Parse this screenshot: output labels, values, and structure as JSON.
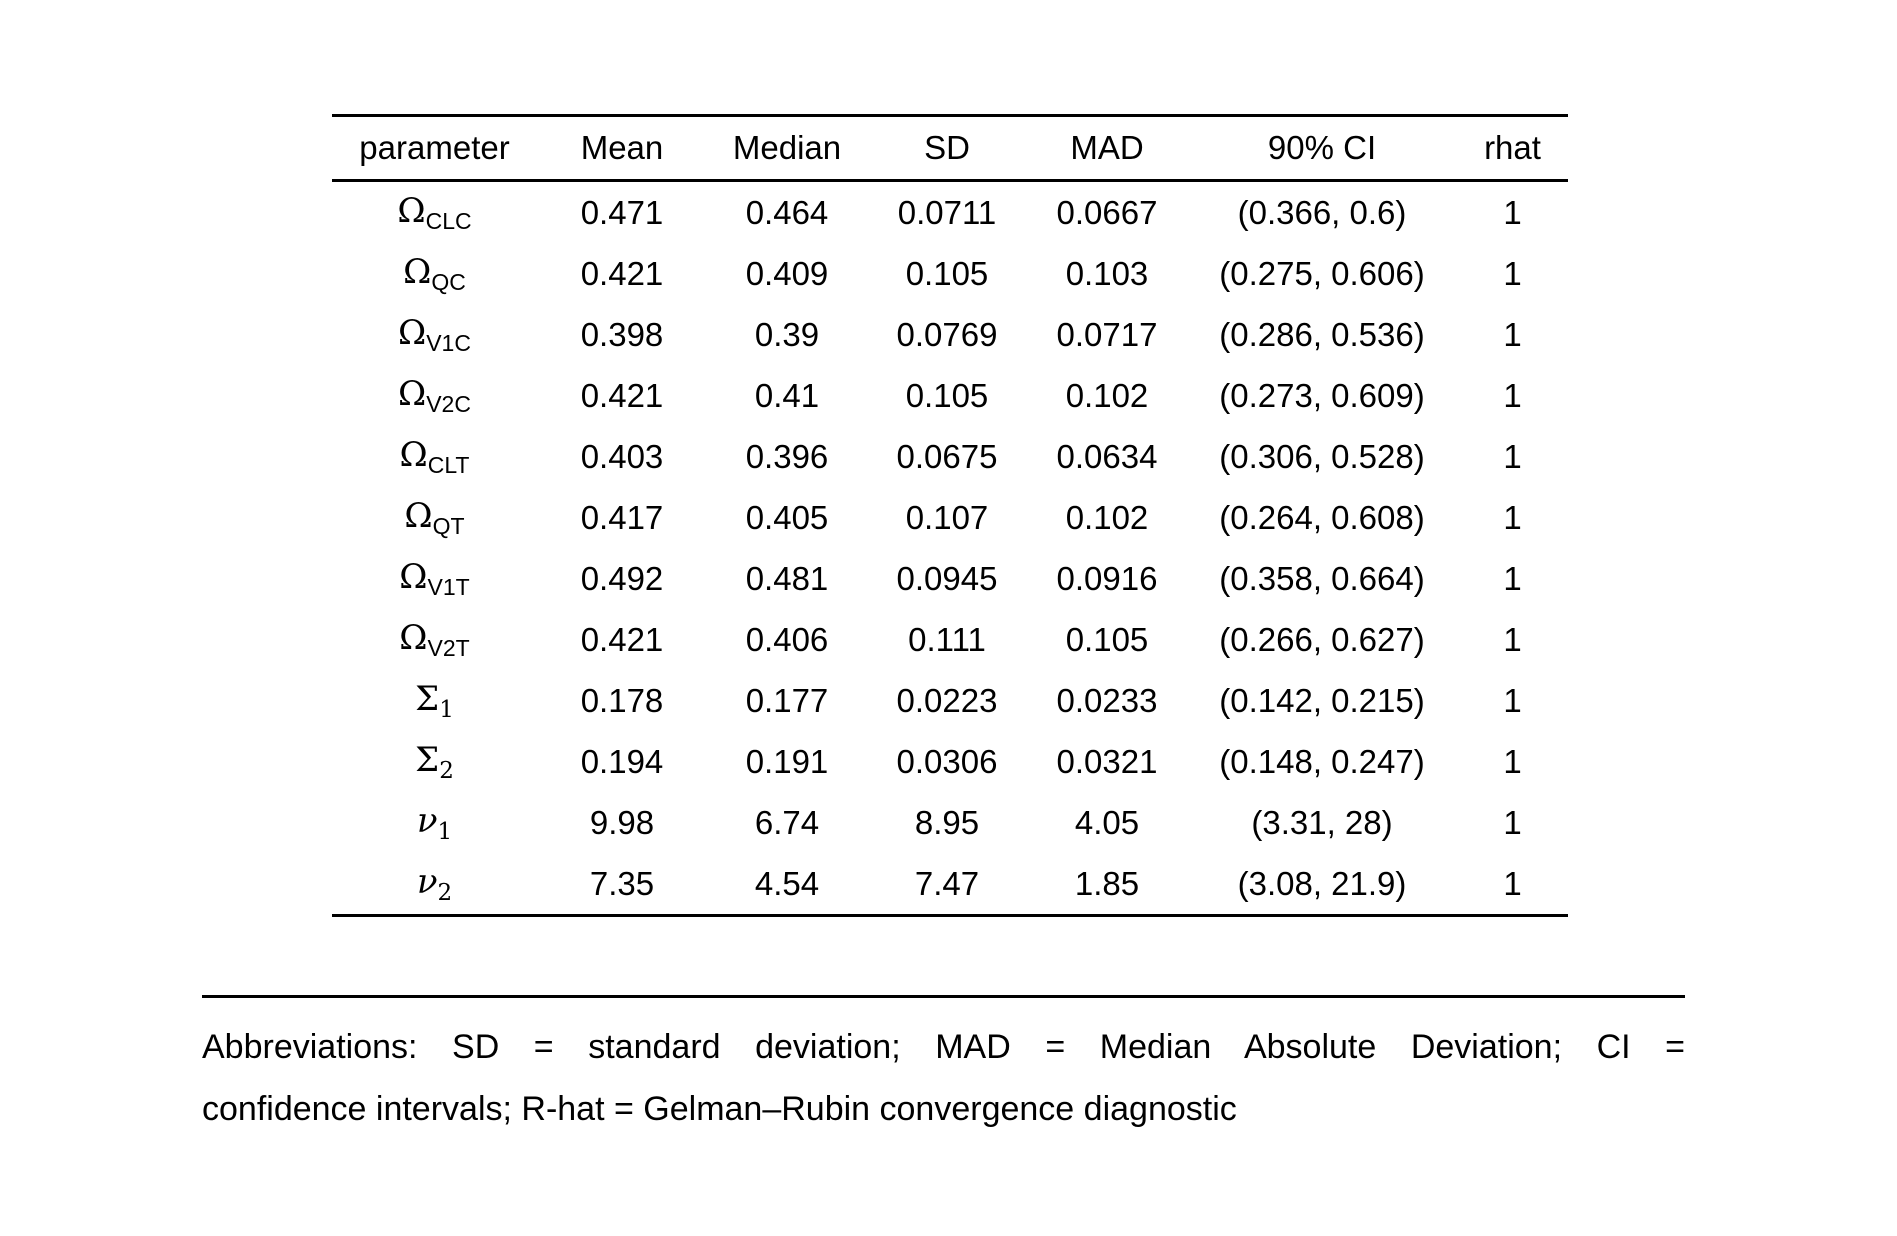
{
  "page": {
    "background_color": "#ffffff",
    "text_color": "#000000"
  },
  "table": {
    "headers": [
      "parameter",
      "Mean",
      "Median",
      "SD",
      "MAD",
      "90% CI",
      "rhat"
    ],
    "rows": [
      {
        "param": {
          "base": "Ω",
          "sub": "CLC"
        },
        "mean": "0.471",
        "median": "0.464",
        "sd": "0.0711",
        "mad": "0.0667",
        "ci": "(0.366, 0.6)",
        "rhat": "1"
      },
      {
        "param": {
          "base": "Ω",
          "sub": "QC"
        },
        "mean": "0.421",
        "median": "0.409",
        "sd": "0.105",
        "mad": "0.103",
        "ci": "(0.275, 0.606)",
        "rhat": "1"
      },
      {
        "param": {
          "base": "Ω",
          "sub": "V1C"
        },
        "mean": "0.398",
        "median": "0.39",
        "sd": "0.0769",
        "mad": "0.0717",
        "ci": "(0.286, 0.536)",
        "rhat": "1"
      },
      {
        "param": {
          "base": "Ω",
          "sub": "V2C"
        },
        "mean": "0.421",
        "median": "0.41",
        "sd": "0.105",
        "mad": "0.102",
        "ci": "(0.273, 0.609)",
        "rhat": "1"
      },
      {
        "param": {
          "base": "Ω",
          "sub": "CLT"
        },
        "mean": "0.403",
        "median": "0.396",
        "sd": "0.0675",
        "mad": "0.0634",
        "ci": "(0.306, 0.528)",
        "rhat": "1"
      },
      {
        "param": {
          "base": "Ω",
          "sub": "QT"
        },
        "mean": "0.417",
        "median": "0.405",
        "sd": "0.107",
        "mad": "0.102",
        "ci": "(0.264, 0.608)",
        "rhat": "1"
      },
      {
        "param": {
          "base": "Ω",
          "sub": "V1T"
        },
        "mean": "0.492",
        "median": "0.481",
        "sd": "0.0945",
        "mad": "0.0916",
        "ci": "(0.358, 0.664)",
        "rhat": "1"
      },
      {
        "param": {
          "base": "Ω",
          "sub": "V2T"
        },
        "mean": "0.421",
        "median": "0.406",
        "sd": "0.111",
        "mad": "0.105",
        "ci": "(0.266, 0.627)",
        "rhat": "1"
      },
      {
        "param": {
          "base": "Σ",
          "sub": "1"
        },
        "mean": "0.178",
        "median": "0.177",
        "sd": "0.0223",
        "mad": "0.0233",
        "ci": "(0.142, 0.215)",
        "rhat": "1"
      },
      {
        "param": {
          "base": "Σ",
          "sub": "2"
        },
        "mean": "0.194",
        "median": "0.191",
        "sd": "0.0306",
        "mad": "0.0321",
        "ci": "(0.148, 0.247)",
        "rhat": "1"
      },
      {
        "param": {
          "base": "ν",
          "sub": "1"
        },
        "mean": "9.98",
        "median": "6.74",
        "sd": "8.95",
        "mad": "4.05",
        "ci": "(3.31, 28)",
        "rhat": "1"
      },
      {
        "param": {
          "base": "ν",
          "sub": "2"
        },
        "mean": "7.35",
        "median": "4.54",
        "sd": "7.47",
        "mad": "1.85",
        "ci": "(3.08, 21.9)",
        "rhat": "1"
      }
    ]
  },
  "footnote": {
    "line1": "Abbreviations: SD = standard deviation; MAD = Median Absolute Deviation; CI =",
    "line2": "confidence intervals; R-hat = Gelman–Rubin convergence diagnostic"
  }
}
